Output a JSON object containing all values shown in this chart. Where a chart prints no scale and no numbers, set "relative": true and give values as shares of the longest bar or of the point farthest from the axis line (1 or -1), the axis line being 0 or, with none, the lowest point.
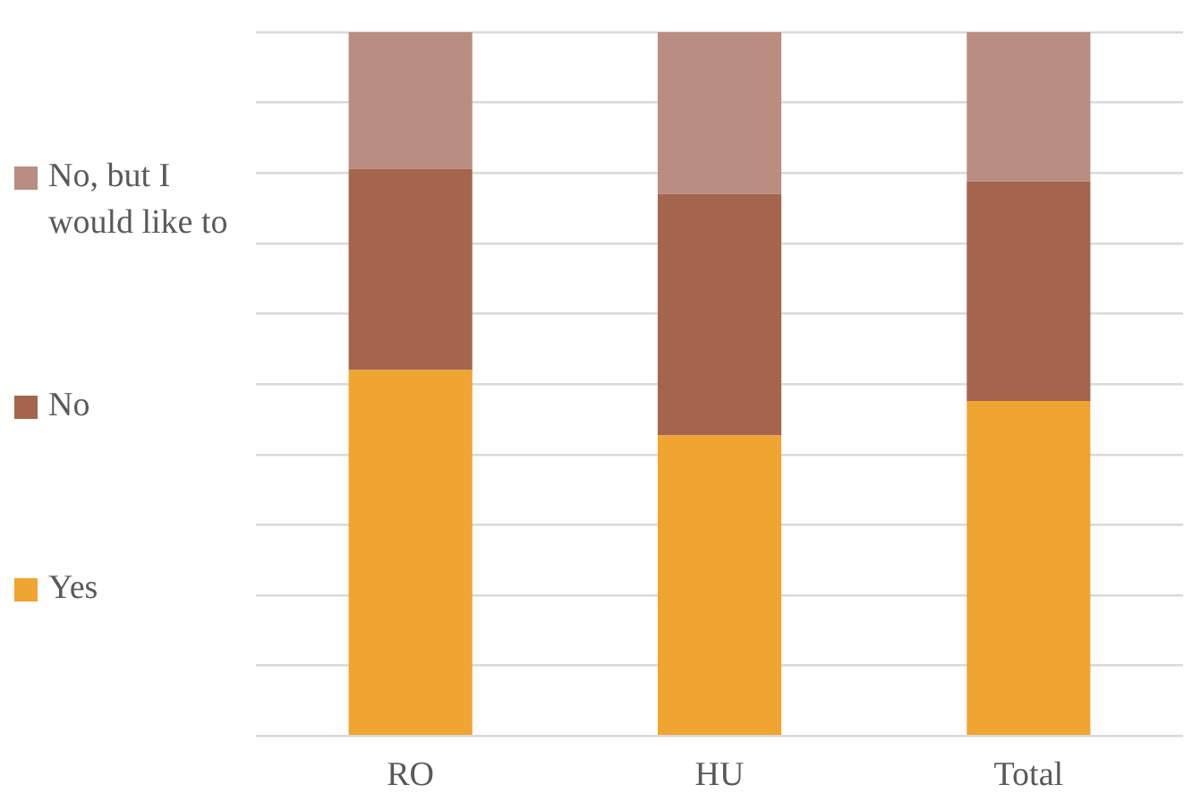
{
  "chart_data": {
    "type": "bar",
    "stacked": true,
    "relative": true,
    "categories": [
      "RO",
      "HU",
      "Total"
    ],
    "series": [
      {
        "name": "Yes",
        "color": "#f0a431",
        "values": [
          0.52,
          0.427,
          0.476
        ]
      },
      {
        "name": "No",
        "color": "#a5654d",
        "values": [
          0.286,
          0.343,
          0.312
        ]
      },
      {
        "name": "No, but I would like to",
        "color": "#b98d80",
        "values": [
          0.194,
          0.23,
          0.212
        ]
      }
    ],
    "grid": "y",
    "legend": "left"
  }
}
